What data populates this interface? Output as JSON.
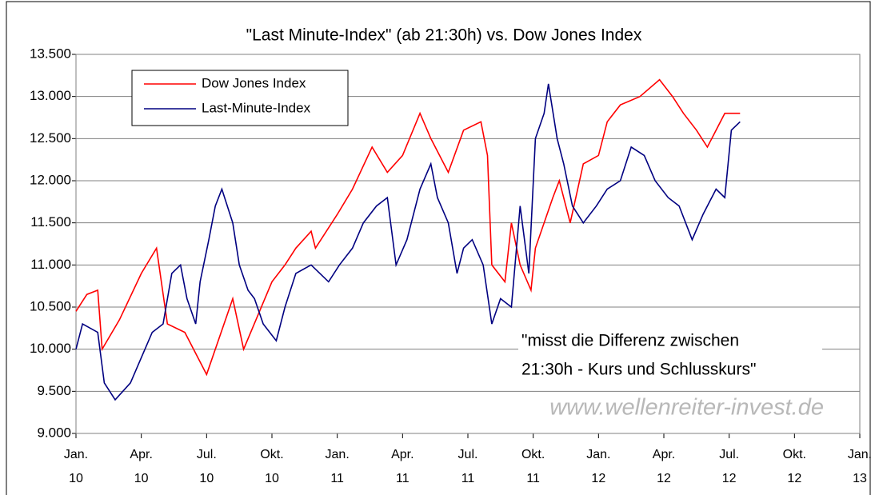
{
  "chart_data": {
    "type": "line",
    "title": "\"Last Minute-Index\" (ab 21:30h) vs. Dow Jones Index",
    "annotation": [
      "\"misst die Differenz zwischen",
      "21:30h - Kurs und Schlusskurs\""
    ],
    "watermark": "www.wellenreiter-invest.de",
    "legend": "upper left",
    "grid": true,
    "xlim": [
      0,
      36
    ],
    "xticks": [
      {
        "value": 0,
        "label": "Jan. 10"
      },
      {
        "value": 3,
        "label": "Apr. 10"
      },
      {
        "value": 6,
        "label": "Jul. 10"
      },
      {
        "value": 9,
        "label": "Okt. 10"
      },
      {
        "value": 12,
        "label": "Jan. 11"
      },
      {
        "value": 15,
        "label": "Apr. 11"
      },
      {
        "value": 18,
        "label": "Jul. 11"
      },
      {
        "value": 21,
        "label": "Okt. 11"
      },
      {
        "value": 24,
        "label": "Jan. 12"
      },
      {
        "value": 27,
        "label": "Apr. 12"
      },
      {
        "value": 30,
        "label": "Jul. 12"
      },
      {
        "value": 33,
        "label": "Okt. 12"
      },
      {
        "value": 36,
        "label": "Jan. 13"
      }
    ],
    "ylim": [
      9000,
      13500
    ],
    "yticks": [
      {
        "value": 9000,
        "label": "9.000"
      },
      {
        "value": 9500,
        "label": "9.500"
      },
      {
        "value": 10000,
        "label": "10.000"
      },
      {
        "value": 10500,
        "label": "10.500"
      },
      {
        "value": 11000,
        "label": "11.000"
      },
      {
        "value": 11500,
        "label": "11.500"
      },
      {
        "value": 12000,
        "label": "12.000"
      },
      {
        "value": 12500,
        "label": "12.500"
      },
      {
        "value": 13000,
        "label": "13.000"
      },
      {
        "value": 13500,
        "label": "13.500"
      }
    ],
    "series": [
      {
        "name": "Dow Jones Index",
        "color": "#ff0000",
        "x": [
          0,
          0.5,
          1,
          1.2,
          2,
          3,
          3.7,
          4.2,
          5,
          6,
          7.2,
          7.7,
          9,
          9.6,
          10.1,
          10.8,
          11,
          12,
          12.7,
          13.6,
          14.3,
          15,
          15.8,
          16.3,
          17.1,
          17.8,
          18.6,
          18.9,
          19.1,
          19.7,
          20,
          20.4,
          20.9,
          21.1,
          21.9,
          22.2,
          22.7,
          23.3,
          24,
          24.4,
          25,
          25.9,
          26.8,
          27.4,
          27.9,
          28.5,
          29,
          29.8,
          30.5
        ],
        "values": [
          10450,
          10650,
          10700,
          10000,
          10350,
          10900,
          11200,
          10300,
          10200,
          9700,
          10600,
          10000,
          10800,
          11000,
          11200,
          11400,
          11200,
          11600,
          11900,
          12400,
          12100,
          12300,
          12800,
          12500,
          12100,
          12600,
          12700,
          12300,
          11000,
          10800,
          11500,
          11000,
          10700,
          11200,
          11800,
          12000,
          11500,
          12200,
          12300,
          12700,
          12900,
          13000,
          13200,
          13000,
          12800,
          12600,
          12400,
          12800,
          12800
        ]
      },
      {
        "name": "Last-Minute-Index",
        "color": "#000080",
        "x": [
          0,
          0.3,
          1,
          1.3,
          1.8,
          2.5,
          3,
          3.5,
          4,
          4.4,
          4.8,
          5.1,
          5.5,
          5.7,
          6.1,
          6.4,
          6.7,
          7.2,
          7.5,
          7.9,
          8.2,
          8.6,
          9.2,
          9.6,
          10.1,
          10.8,
          11.6,
          12.1,
          12.7,
          13.2,
          13.8,
          14.3,
          14.7,
          15.2,
          15.8,
          16.3,
          16.6,
          17.1,
          17.5,
          17.8,
          18.2,
          18.7,
          19.1,
          19.5,
          20,
          20.4,
          20.8,
          21.1,
          21.5,
          21.7,
          22.1,
          22.4,
          22.8,
          23.3,
          23.9,
          24.4,
          25,
          25.5,
          26.1,
          26.6,
          27.2,
          27.7,
          28.3,
          28.8,
          29.4,
          29.8,
          30.1,
          30.5
        ],
        "values": [
          10000,
          10300,
          10200,
          9600,
          9400,
          9600,
          9900,
          10200,
          10300,
          10900,
          11000,
          10600,
          10300,
          10800,
          11300,
          11700,
          11900,
          11500,
          11000,
          10700,
          10600,
          10300,
          10100,
          10500,
          10900,
          11000,
          10800,
          11000,
          11200,
          11500,
          11700,
          11800,
          11000,
          11300,
          11900,
          12200,
          11800,
          11500,
          10900,
          11200,
          11300,
          11000,
          10300,
          10600,
          10500,
          11700,
          10900,
          12500,
          12800,
          13150,
          12500,
          12200,
          11700,
          11500,
          11700,
          11900,
          12000,
          12400,
          12300,
          12000,
          11800,
          11700,
          11300,
          11600,
          11900,
          11800,
          12600,
          12700
        ]
      }
    ]
  }
}
